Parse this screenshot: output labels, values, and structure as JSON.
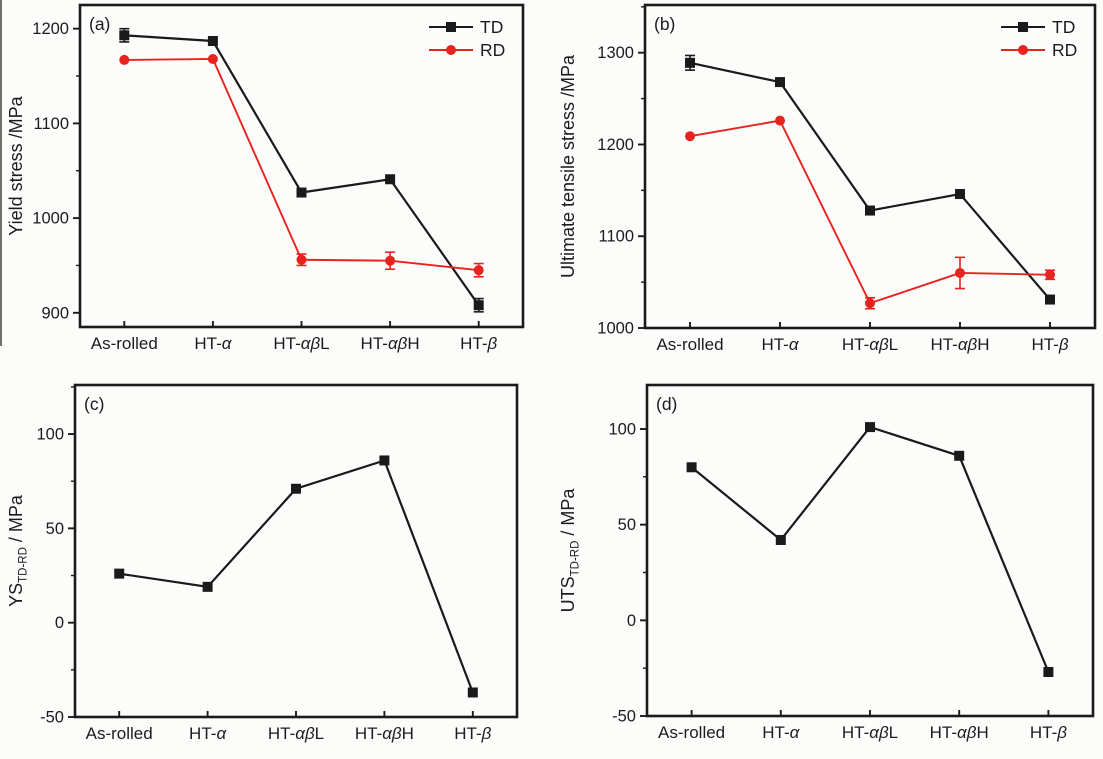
{
  "figure": {
    "background": "#fcfcfb",
    "text_color": "#1c1c1c",
    "frame_color": "#1a1a1a",
    "series_black": "#1a1a1a",
    "series_red": "#e8231f"
  },
  "chart_data": [
    {
      "id": "a",
      "type": "line",
      "tag": "(a)",
      "ylabel": {
        "main": "Yield stress",
        "sub": "",
        "unit": " /MPa"
      },
      "categories": [
        "As-rolled",
        "HT-α",
        "HT-αβL",
        "HT-αβH",
        "HT-β"
      ],
      "ylim": [
        885,
        1225
      ],
      "yticks": [
        900,
        1000,
        1100,
        1200
      ],
      "yminor_interval": 50,
      "grid": false,
      "legend_position": "top-right-inside",
      "show_legend": true,
      "series": [
        {
          "name": "TD",
          "color": "#1a1a1a",
          "marker": "square",
          "values": [
            1193,
            1187,
            1027,
            1041,
            908
          ],
          "errors": [
            7,
            0,
            0,
            0,
            7
          ]
        },
        {
          "name": "RD",
          "color": "#e8231f",
          "marker": "circle",
          "values": [
            1167,
            1168,
            956,
            955,
            945
          ],
          "errors": [
            0,
            0,
            6,
            9,
            7
          ]
        }
      ]
    },
    {
      "id": "b",
      "type": "line",
      "tag": "(b)",
      "ylabel": {
        "main": "Ultimate tensile stress",
        "sub": "",
        "unit": " /MPa"
      },
      "categories": [
        "As-rolled",
        "HT-α",
        "HT-αβL",
        "HT-αβH",
        "HT-β"
      ],
      "ylim": [
        1000,
        1352
      ],
      "yticks": [
        1000,
        1100,
        1200,
        1300
      ],
      "yminor_interval": 50,
      "grid": false,
      "legend_position": "top-right-inside",
      "show_legend": true,
      "series": [
        {
          "name": "TD",
          "color": "#1a1a1a",
          "marker": "square",
          "values": [
            1289,
            1268,
            1128,
            1146,
            1031
          ],
          "errors": [
            8,
            0,
            0,
            0,
            0
          ]
        },
        {
          "name": "RD",
          "color": "#e8231f",
          "marker": "circle",
          "values": [
            1209,
            1226,
            1027,
            1060,
            1058
          ],
          "errors": [
            0,
            0,
            6,
            17,
            5
          ]
        }
      ]
    },
    {
      "id": "c",
      "type": "line",
      "tag": "(c)",
      "ylabel": {
        "main": "YS",
        "sub": "TD-RD",
        "unit": " / MPa"
      },
      "categories": [
        "As-rolled",
        "HT-α",
        "HT-αβL",
        "HT-αβH",
        "HT-β"
      ],
      "ylim": [
        -50,
        126
      ],
      "yticks": [
        -50,
        0,
        50,
        100
      ],
      "yminor_interval": 25,
      "grid": false,
      "show_legend": false,
      "series": [
        {
          "name": "YS TD-RD",
          "color": "#1a1a1a",
          "marker": "square",
          "values": [
            26,
            19,
            71,
            86,
            -37
          ],
          "errors": [
            0,
            0,
            0,
            0,
            0
          ]
        }
      ]
    },
    {
      "id": "d",
      "type": "line",
      "tag": "(d)",
      "ylabel": {
        "main": "UTS",
        "sub": "TD-RD",
        "unit": " / MPa"
      },
      "categories": [
        "As-rolled",
        "HT-α",
        "HT-αβL",
        "HT-αβH",
        "HT-β"
      ],
      "ylim": [
        -50,
        123
      ],
      "yticks": [
        -50,
        0,
        50,
        100
      ],
      "yminor_interval": 25,
      "grid": false,
      "show_legend": false,
      "series": [
        {
          "name": "UTS TD-RD",
          "color": "#1a1a1a",
          "marker": "square",
          "values": [
            80,
            42,
            101,
            86,
            -27
          ],
          "errors": [
            0,
            0,
            0,
            0,
            0
          ]
        }
      ]
    }
  ]
}
